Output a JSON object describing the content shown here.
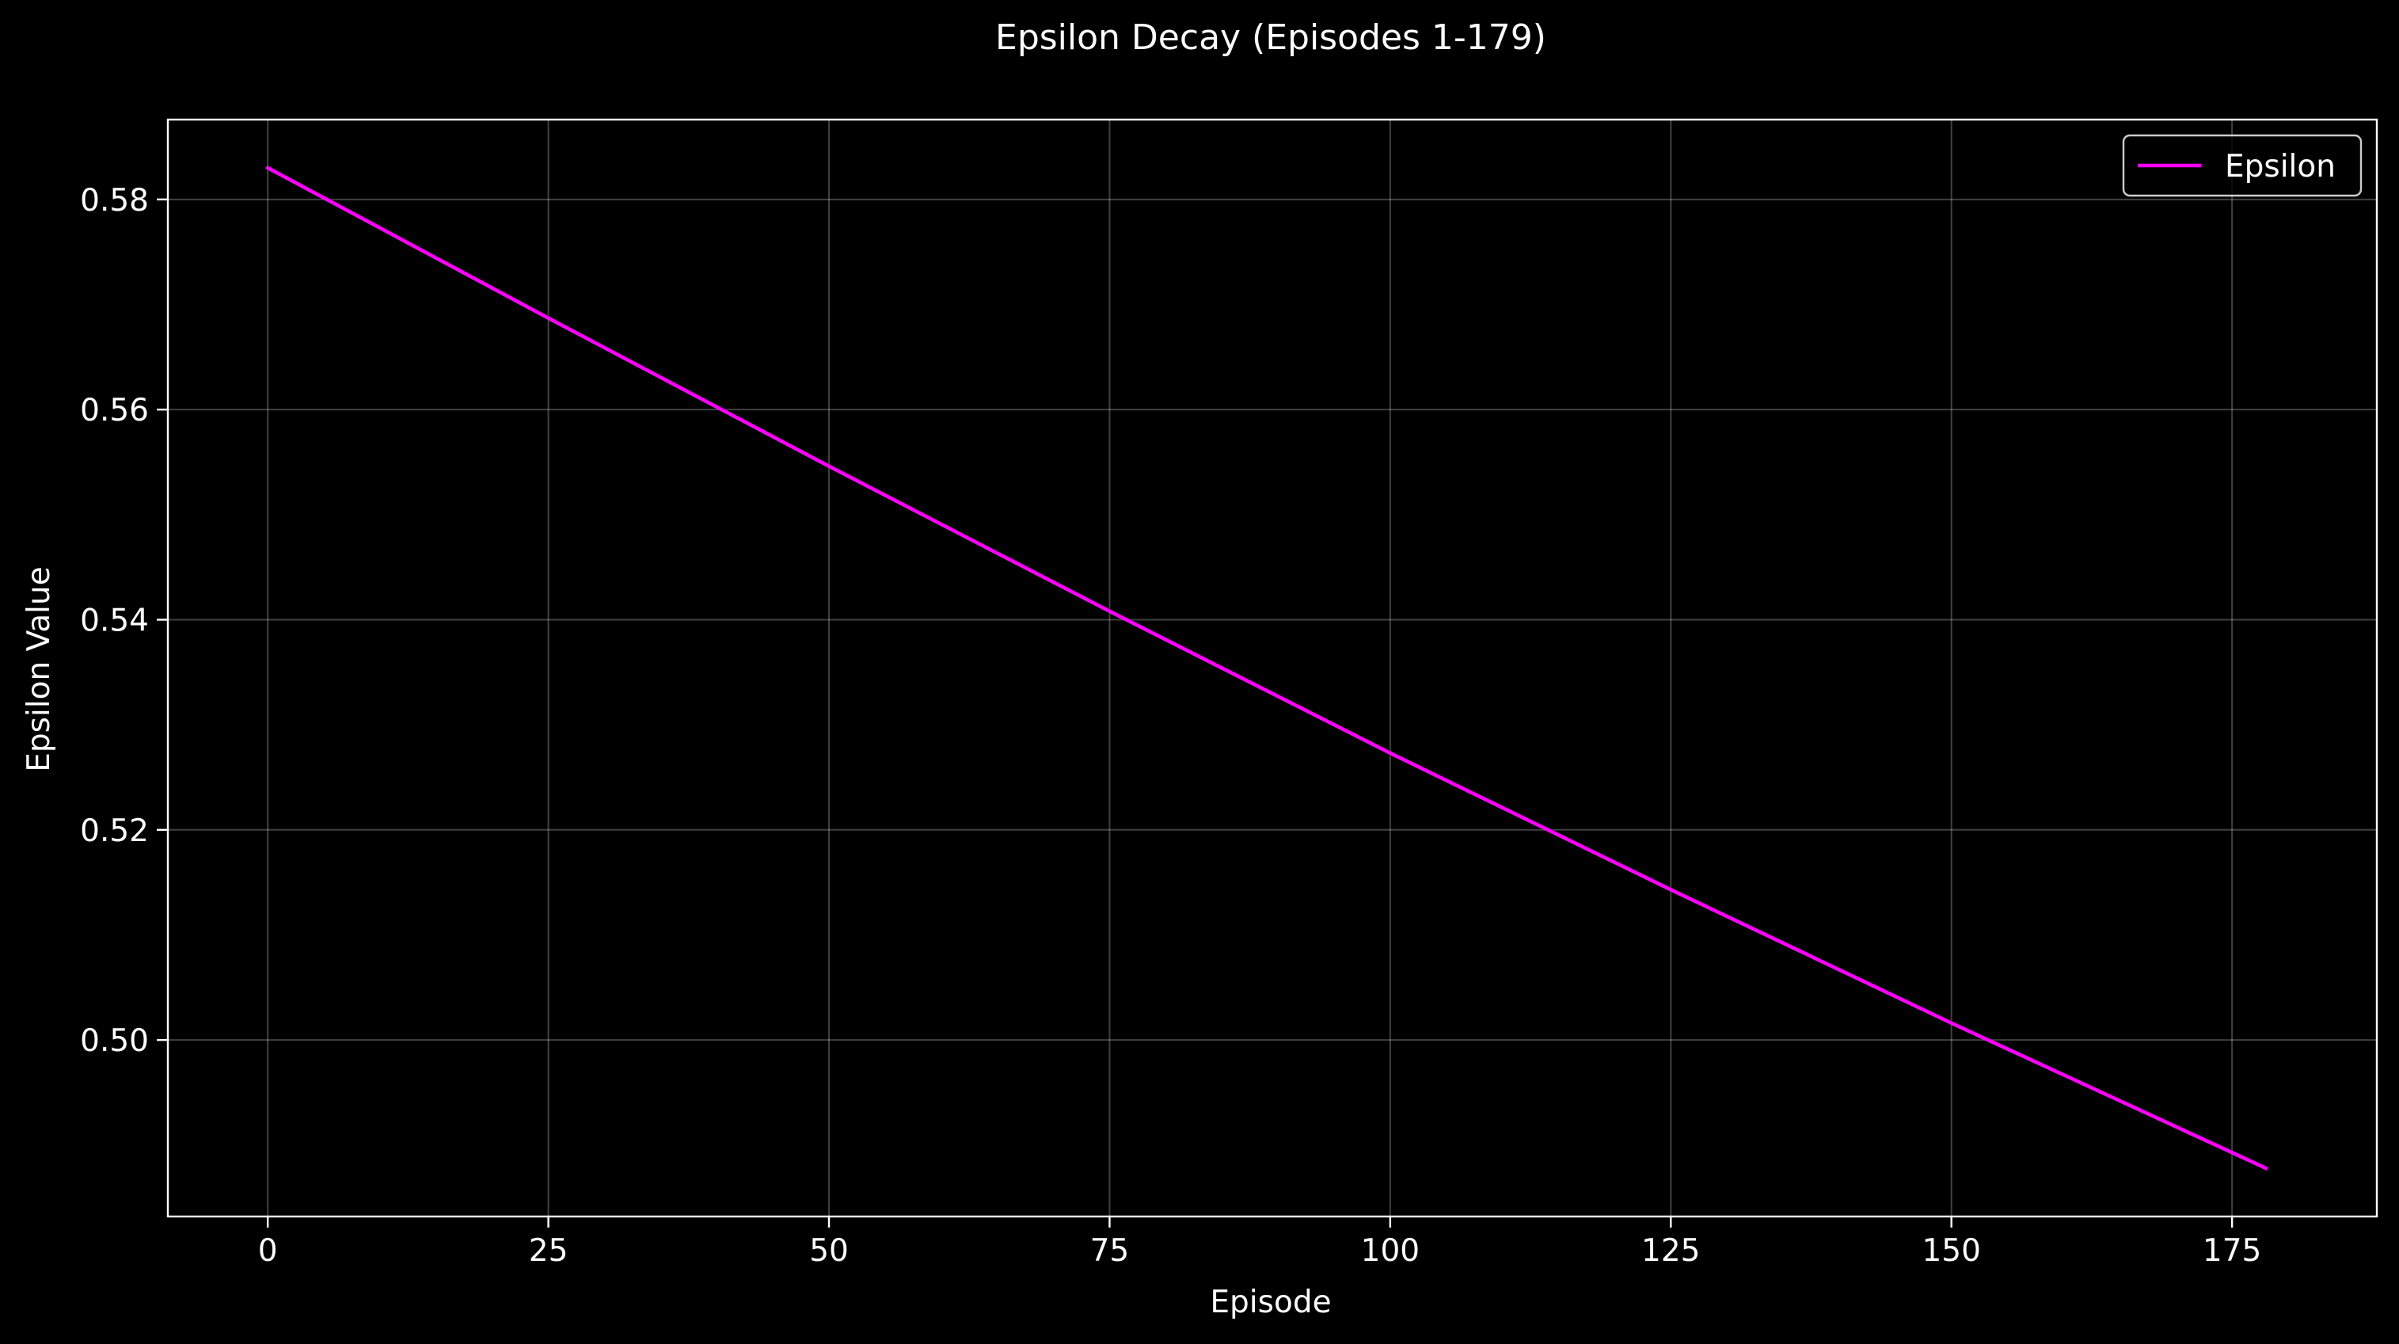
{
  "chart_data": {
    "type": "line",
    "title": "Epsilon Decay (Episodes 1-179)",
    "xlabel": "Episode",
    "ylabel": "Epsilon Value",
    "xlim": [
      -8.9,
      187.9
    ],
    "ylim": [
      0.4832,
      0.5876
    ],
    "xticks": [
      0,
      25,
      50,
      75,
      100,
      125,
      150,
      175
    ],
    "xtick_labels": [
      "0",
      "25",
      "50",
      "75",
      "100",
      "125",
      "150",
      "175"
    ],
    "yticks": [
      0.5,
      0.52,
      0.54,
      0.56,
      0.58
    ],
    "ytick_labels": [
      "0.50",
      "0.52",
      "0.54",
      "0.56",
      "0.58"
    ],
    "grid": true,
    "legend_position": "top-right",
    "series": [
      {
        "name": "Epsilon",
        "color": "#ff00ff",
        "x": [
          0,
          25,
          50,
          75,
          100,
          125,
          150,
          178
        ],
        "y": [
          0.583,
          0.5687,
          0.5546,
          0.5408,
          0.5273,
          0.5143,
          0.5016,
          0.4878
        ]
      }
    ]
  },
  "colors": {
    "background": "#000000",
    "axes": "#ffffff",
    "text": "#ffffff",
    "grid": "#ffffff"
  }
}
